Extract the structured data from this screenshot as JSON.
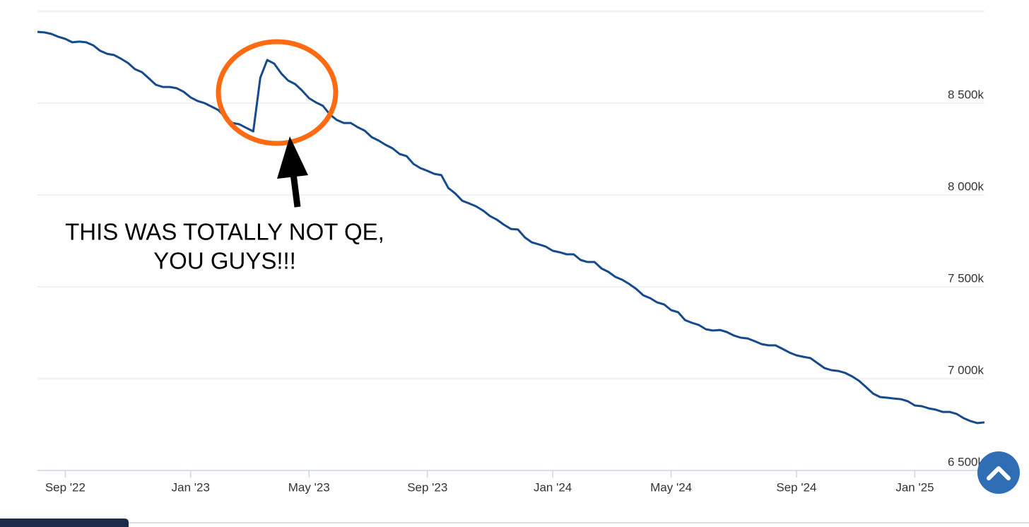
{
  "chart_data": {
    "type": "line",
    "color": "#174a8b",
    "grid": true,
    "ylim": [
      6500,
      9000
    ],
    "yticks": [
      {
        "value": 6500,
        "label": "6 500k"
      },
      {
        "value": 7000,
        "label": "7 000k"
      },
      {
        "value": 7500,
        "label": "7 500k"
      },
      {
        "value": 8000,
        "label": "8 000k"
      },
      {
        "value": 8500,
        "label": "8 500k"
      }
    ],
    "annotations": [
      "THIS WAS TOTALLY NOT QE,",
      "YOU GUYS!!!"
    ],
    "categories": [
      null,
      null,
      null,
      null,
      "Sep '22",
      null,
      null,
      null,
      null,
      null,
      null,
      null,
      null,
      null,
      null,
      null,
      null,
      null,
      null,
      null,
      null,
      null,
      "Jan '23",
      null,
      null,
      null,
      null,
      null,
      null,
      null,
      null,
      null,
      null,
      null,
      null,
      null,
      null,
      null,
      null,
      "May '23",
      null,
      null,
      null,
      null,
      null,
      null,
      null,
      null,
      null,
      null,
      null,
      null,
      null,
      null,
      null,
      null,
      "Sep '23",
      null,
      null,
      null,
      null,
      null,
      null,
      null,
      null,
      null,
      null,
      null,
      null,
      null,
      null,
      null,
      null,
      null,
      "Jan '24",
      null,
      null,
      null,
      null,
      null,
      null,
      null,
      null,
      null,
      null,
      null,
      null,
      null,
      null,
      null,
      null,
      "May '24",
      null,
      null,
      null,
      null,
      null,
      null,
      null,
      null,
      null,
      null,
      null,
      null,
      null,
      null,
      null,
      null,
      null,
      "Sep '24",
      null,
      null,
      null,
      null,
      null,
      null,
      null,
      null,
      null,
      null,
      null,
      null,
      null,
      null,
      null,
      null,
      "Jan '25",
      null,
      null,
      null,
      null,
      null,
      null,
      null,
      null,
      null,
      null
    ],
    "values": [
      8888,
      8885,
      8877,
      8861,
      8850,
      8831,
      8835,
      8831,
      8815,
      8785,
      8769,
      8762,
      8742,
      8719,
      8685,
      8669,
      8635,
      8600,
      8588,
      8588,
      8581,
      8562,
      8531,
      8512,
      8500,
      8481,
      8462,
      8423,
      8392,
      8385,
      8365,
      8346,
      8638,
      8735,
      8715,
      8662,
      8623,
      8604,
      8569,
      8527,
      8504,
      8485,
      8438,
      8408,
      8392,
      8392,
      8369,
      8350,
      8315,
      8296,
      8273,
      8254,
      8223,
      8212,
      8169,
      8146,
      8131,
      8115,
      8108,
      8038,
      8008,
      7969,
      7954,
      7938,
      7915,
      7885,
      7865,
      7838,
      7815,
      7812,
      7769,
      7742,
      7731,
      7719,
      7696,
      7688,
      7677,
      7677,
      7646,
      7635,
      7635,
      7600,
      7581,
      7554,
      7538,
      7515,
      7488,
      7454,
      7438,
      7415,
      7404,
      7373,
      7362,
      7319,
      7304,
      7292,
      7269,
      7262,
      7265,
      7254,
      7235,
      7223,
      7219,
      7204,
      7188,
      7181,
      7181,
      7162,
      7142,
      7127,
      7119,
      7112,
      7085,
      7058,
      7046,
      7042,
      7031,
      7012,
      6988,
      6954,
      6919,
      6900,
      6896,
      6892,
      6888,
      6877,
      6854,
      6850,
      6838,
      6831,
      6819,
      6819,
      6808,
      6785,
      6769,
      6758,
      6762
    ]
  }
}
